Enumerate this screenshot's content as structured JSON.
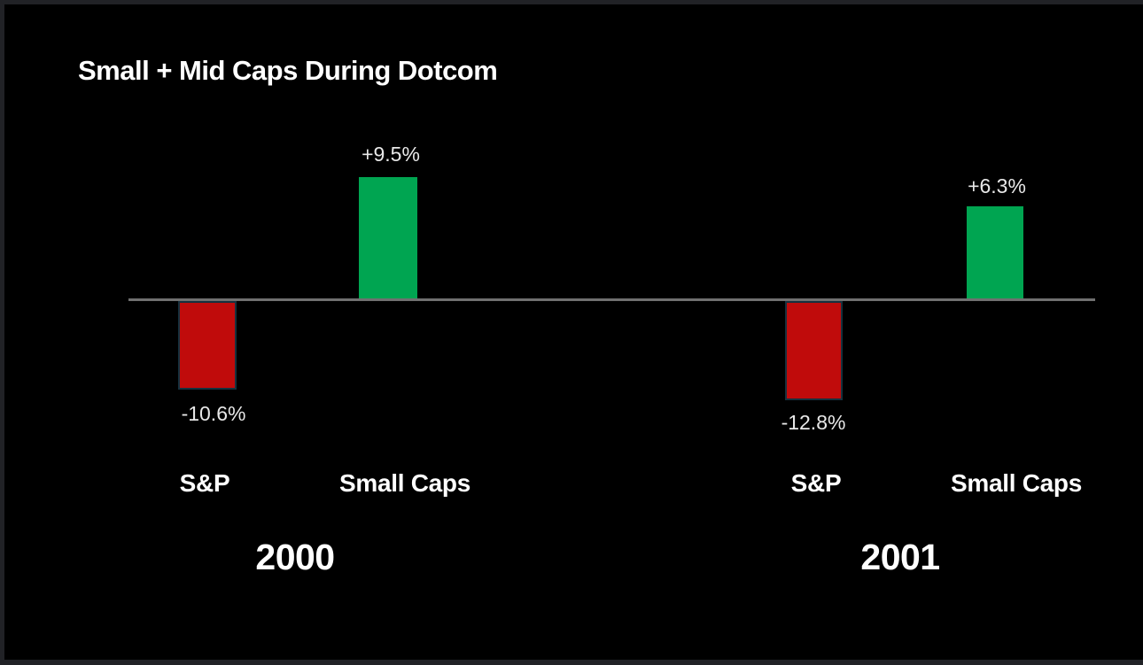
{
  "title": "Small + Mid Caps During Dotcom",
  "colors": {
    "background": "#000000",
    "frame": "#212226",
    "title_text": "#FFFFFF",
    "value_text": "#E8E8E8",
    "positive": "#00A551",
    "negative": "#C00B0B",
    "negative_border": "#17313E",
    "axis": "#707070"
  },
  "chart_data": {
    "type": "bar",
    "title": "Small + Mid Caps During Dotcom",
    "unit": "%",
    "baseline": 0,
    "grid": false,
    "legend": null,
    "groups": [
      {
        "year": "2000",
        "bars": [
          {
            "label": "S&P",
            "value": -10.6,
            "display": "-10.6%",
            "color": "#C00B0B"
          },
          {
            "label": "Small Caps",
            "value": 9.5,
            "display": "+9.5%",
            "color": "#00A551"
          }
        ]
      },
      {
        "year": "2001",
        "bars": [
          {
            "label": "S&P",
            "value": -12.8,
            "display": "-12.8%",
            "color": "#C00B0B"
          },
          {
            "label": "Small Caps",
            "value": 6.3,
            "display": "+6.3%",
            "color": "#00A551"
          }
        ]
      }
    ]
  }
}
